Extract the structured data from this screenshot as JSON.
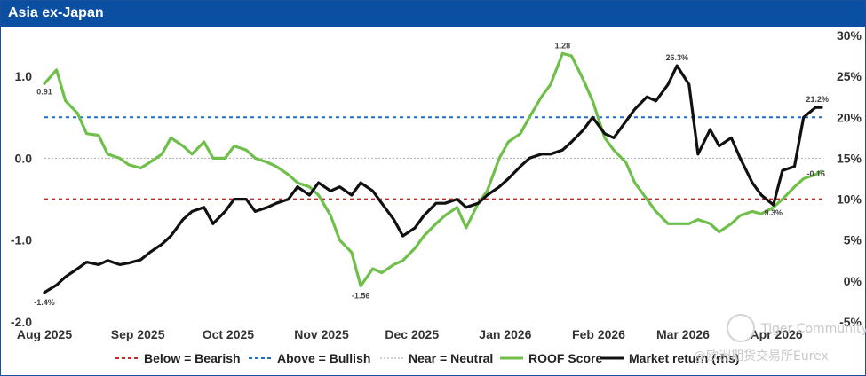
{
  "chart_data": {
    "type": "line",
    "title": "Asia ex-Japan",
    "x_ticks": [
      "Aug 2025",
      "Sep 2025",
      "Oct 2025",
      "Nov 2025",
      "Dec 2025",
      "Jan 2026",
      "Feb 2026",
      "Mar 2026",
      "Apr 2026"
    ],
    "y_left": {
      "ticks": [
        "1.0",
        "0.0",
        "-1.0",
        "-2.0"
      ],
      "ylim": [
        -2.0,
        1.5
      ]
    },
    "y_right": {
      "ticks": [
        "30%",
        "25%",
        "20%",
        "15%",
        "10%",
        "5%",
        "0%",
        "-5%"
      ],
      "ylim": [
        -5,
        30
      ]
    },
    "reference_lines": [
      {
        "name": "Below = Bearish",
        "value": -0.5,
        "color": "#c0282d"
      },
      {
        "name": "Above = Bullish",
        "value": 0.5,
        "color": "#1f6fc9"
      },
      {
        "name": "Near = Neutral",
        "value": 0.0,
        "color": "#b5b5b5"
      }
    ],
    "series": [
      {
        "name": "ROOF Score",
        "axis": "left",
        "color": "#6fbf4a",
        "x": [
          "2025-08-01",
          "2025-08-05",
          "2025-08-08",
          "2025-08-12",
          "2025-08-15",
          "2025-08-19",
          "2025-08-22",
          "2025-08-26",
          "2025-08-29",
          "2025-09-02",
          "2025-09-05",
          "2025-09-09",
          "2025-09-12",
          "2025-09-16",
          "2025-09-19",
          "2025-09-23",
          "2025-09-26",
          "2025-09-30",
          "2025-10-03",
          "2025-10-07",
          "2025-10-10",
          "2025-10-14",
          "2025-10-17",
          "2025-10-21",
          "2025-10-24",
          "2025-10-28",
          "2025-10-31",
          "2025-11-04",
          "2025-11-07",
          "2025-11-11",
          "2025-11-14",
          "2025-11-18",
          "2025-11-21",
          "2025-11-25",
          "2025-11-28",
          "2025-12-02",
          "2025-12-05",
          "2025-12-09",
          "2025-12-12",
          "2025-12-16",
          "2025-12-19",
          "2025-12-23",
          "2025-12-26",
          "2025-12-30",
          "2026-01-02",
          "2026-01-06",
          "2026-01-09",
          "2026-01-13",
          "2026-01-16",
          "2026-01-20",
          "2026-01-23",
          "2026-01-27",
          "2026-01-30",
          "2026-02-03",
          "2026-02-06",
          "2026-02-10",
          "2026-02-13",
          "2026-02-17",
          "2026-02-20",
          "2026-02-24",
          "2026-02-27",
          "2026-03-03",
          "2026-03-06",
          "2026-03-10",
          "2026-03-13",
          "2026-03-17",
          "2026-03-20",
          "2026-03-24",
          "2026-03-27",
          "2026-03-31",
          "2026-04-03",
          "2026-04-07",
          "2026-04-10",
          "2026-04-14",
          "2026-04-16"
        ],
        "values": [
          0.91,
          1.08,
          0.7,
          0.55,
          0.3,
          0.28,
          0.05,
          0.0,
          -0.08,
          -0.12,
          -0.05,
          0.05,
          0.25,
          0.15,
          0.05,
          0.2,
          0.0,
          0.0,
          0.15,
          0.1,
          0.0,
          -0.05,
          -0.1,
          -0.2,
          -0.3,
          -0.35,
          -0.45,
          -0.7,
          -1.0,
          -1.15,
          -1.56,
          -1.35,
          -1.4,
          -1.3,
          -1.25,
          -1.1,
          -0.95,
          -0.8,
          -0.7,
          -0.6,
          -0.85,
          -0.55,
          -0.4,
          0.0,
          0.2,
          0.3,
          0.5,
          0.75,
          0.9,
          1.28,
          1.25,
          0.95,
          0.7,
          0.25,
          0.1,
          -0.05,
          -0.3,
          -0.5,
          -0.65,
          -0.8,
          -0.8,
          -0.8,
          -0.75,
          -0.8,
          -0.9,
          -0.8,
          -0.7,
          -0.65,
          -0.68,
          -0.6,
          -0.5,
          -0.35,
          -0.25,
          -0.2,
          -0.16
        ],
        "labels": [
          {
            "x": "2025-08-01",
            "value": 0.91,
            "text": "0.91"
          },
          {
            "x": "2025-11-14",
            "value": -1.56,
            "text": "-1.56"
          },
          {
            "x": "2026-01-20",
            "value": 1.28,
            "text": "1.28"
          },
          {
            "x": "2026-04-16",
            "value": -0.16,
            "text": "-0.16"
          }
        ]
      },
      {
        "name": "Market return (rhs)",
        "axis": "right",
        "color": "#111111",
        "x": [
          "2025-08-01",
          "2025-08-05",
          "2025-08-08",
          "2025-08-12",
          "2025-08-15",
          "2025-08-19",
          "2025-08-22",
          "2025-08-26",
          "2025-08-29",
          "2025-09-02",
          "2025-09-05",
          "2025-09-09",
          "2025-09-12",
          "2025-09-16",
          "2025-09-19",
          "2025-09-23",
          "2025-09-26",
          "2025-09-30",
          "2025-10-03",
          "2025-10-07",
          "2025-10-10",
          "2025-10-14",
          "2025-10-17",
          "2025-10-21",
          "2025-10-24",
          "2025-10-28",
          "2025-10-31",
          "2025-11-04",
          "2025-11-07",
          "2025-11-11",
          "2025-11-14",
          "2025-11-18",
          "2025-11-21",
          "2025-11-25",
          "2025-11-28",
          "2025-12-02",
          "2025-12-05",
          "2025-12-09",
          "2025-12-12",
          "2025-12-16",
          "2025-12-19",
          "2025-12-23",
          "2025-12-26",
          "2025-12-30",
          "2026-01-02",
          "2026-01-06",
          "2026-01-09",
          "2026-01-13",
          "2026-01-16",
          "2026-01-20",
          "2026-01-23",
          "2026-01-27",
          "2026-01-30",
          "2026-02-03",
          "2026-02-06",
          "2026-02-10",
          "2026-02-13",
          "2026-02-17",
          "2026-02-20",
          "2026-02-24",
          "2026-02-27",
          "2026-03-03",
          "2026-03-06",
          "2026-03-10",
          "2026-03-13",
          "2026-03-17",
          "2026-03-20",
          "2026-03-24",
          "2026-03-27",
          "2026-03-31",
          "2026-04-03",
          "2026-04-07",
          "2026-04-10",
          "2026-04-14",
          "2026-04-16"
        ],
        "values": [
          -1.4,
          -0.5,
          0.5,
          1.5,
          2.3,
          2.0,
          2.5,
          2.0,
          2.2,
          2.6,
          3.5,
          4.5,
          5.5,
          7.5,
          8.5,
          9.0,
          7.0,
          8.5,
          10.0,
          10.0,
          8.5,
          9.0,
          9.5,
          10.0,
          11.5,
          10.5,
          12.0,
          11.0,
          11.5,
          10.5,
          12.0,
          11.0,
          9.5,
          7.5,
          5.5,
          6.5,
          8.0,
          9.5,
          9.5,
          10.0,
          9.0,
          9.5,
          10.5,
          11.5,
          12.5,
          14.0,
          15.0,
          15.5,
          15.5,
          16.0,
          17.0,
          18.5,
          20.0,
          18.0,
          17.5,
          19.5,
          21.0,
          22.5,
          22.0,
          24.0,
          26.3,
          24.0,
          15.5,
          18.5,
          16.5,
          17.5,
          15.0,
          12.0,
          10.5,
          9.3,
          13.5,
          14.0,
          20.0,
          21.2,
          21.2
        ],
        "labels": [
          {
            "x": "2025-08-01",
            "value": -1.4,
            "text": "-1.4%"
          },
          {
            "x": "2026-02-27",
            "value": 26.3,
            "text": "26.3%"
          },
          {
            "x": "2026-03-31",
            "value": 9.3,
            "text": "9.3%"
          },
          {
            "x": "2026-04-16",
            "value": 21.2,
            "text": "21.2%"
          }
        ]
      }
    ],
    "legend_position": "bottom"
  },
  "watermark": {
    "text1": "Tiger Community",
    "text2": "@欧洲期货交易所Eurex"
  }
}
